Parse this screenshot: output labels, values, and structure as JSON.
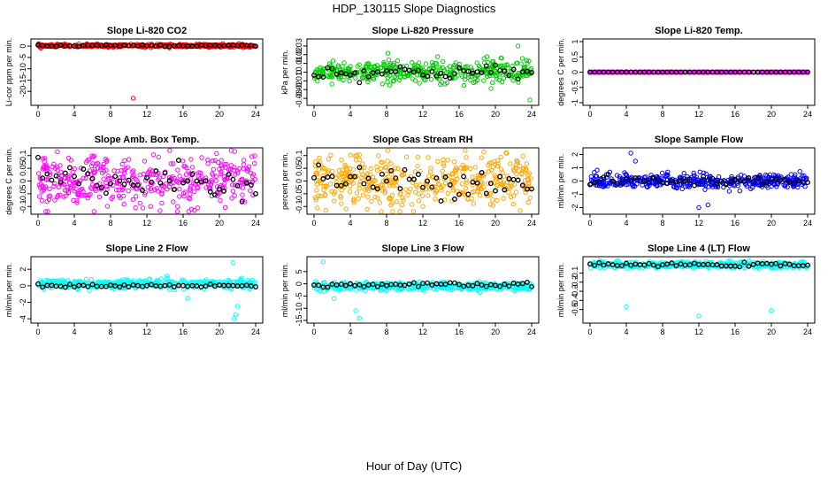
{
  "figure": {
    "title": "HDP_130115  Slope Diagnostics",
    "xlabel": "Hour of Day (UTC)"
  },
  "chart_data": [
    {
      "type": "scatter",
      "title": "Slope Li-820 CO2",
      "ylabel": "Li-cor ppm per min.",
      "xlim": [
        0,
        24
      ],
      "ylim": [
        -25,
        2
      ],
      "xticks": [
        0,
        4,
        8,
        12,
        16,
        20,
        24
      ],
      "yticks": [
        -20,
        -15,
        -10,
        -5,
        0
      ],
      "color": "#ff0000",
      "scatter_center": 0.2,
      "scatter_spread": 0.6,
      "hourly_center": 0.2,
      "hourly_spread": 0.3,
      "outliers": [
        [
          10.5,
          -23
        ]
      ]
    },
    {
      "type": "scatter",
      "title": "Slope Li-820 Pressure",
      "ylabel": "kPa per min.",
      "xlim": [
        0,
        24
      ],
      "ylim": [
        -0.035,
        0.035
      ],
      "xticks": [
        0,
        4,
        8,
        12,
        16,
        20,
        24
      ],
      "yticks": [
        -0.03,
        -0.02,
        -0.01,
        0.0,
        0.01,
        0.02,
        0.03
      ],
      "color": "#00cc00",
      "scatter_center": 0.0,
      "scatter_spread": 0.012,
      "hourly_center": 0.0,
      "hourly_spread": 0.007,
      "outliers": [
        [
          23.8,
          -0.032
        ],
        [
          22.5,
          0.03
        ]
      ]
    },
    {
      "type": "scatter",
      "title": "Slope Li-820 Temp.",
      "ylabel": "degrees C per min.",
      "xlim": [
        0,
        24
      ],
      "ylim": [
        -1,
        1
      ],
      "xticks": [
        0,
        4,
        8,
        12,
        16,
        20,
        24
      ],
      "yticks": [
        -1.0,
        -0.5,
        0.0,
        0.5,
        1.0
      ],
      "color": "#ff00ff",
      "scatter_center": 0.0,
      "scatter_spread": 0.0,
      "hourly_center": 0.0,
      "hourly_spread": 0.0,
      "outliers": []
    },
    {
      "type": "scatter",
      "title": "Slope Amb. Box Temp.",
      "ylabel": "degrees C per min.",
      "xlim": [
        0,
        24
      ],
      "ylim": [
        -0.12,
        0.12
      ],
      "xticks": [
        0,
        4,
        8,
        12,
        16,
        20,
        24
      ],
      "yticks": [
        -0.1,
        -0.05,
        0.0,
        0.05,
        0.1
      ],
      "color": "#ff00ff",
      "scatter_center": 0.0,
      "scatter_spread": 0.09,
      "hourly_center": 0.0,
      "hourly_spread": 0.06,
      "outliers": []
    },
    {
      "type": "scatter",
      "title": "Slope Gas Stream RH",
      "ylabel": "percent per min.",
      "xlim": [
        0,
        24
      ],
      "ylim": [
        -0.12,
        0.12
      ],
      "xticks": [
        0,
        4,
        8,
        12,
        16,
        20,
        24
      ],
      "yticks": [
        -0.1,
        -0.05,
        0.0,
        0.05,
        0.1
      ],
      "color": "#ffa500",
      "scatter_center": 0.0,
      "scatter_spread": 0.09,
      "hourly_center": 0.0,
      "hourly_spread": 0.05,
      "outliers": []
    },
    {
      "type": "scatter",
      "title": "Slope Sample Flow",
      "ylabel": "ml/min per min.",
      "xlim": [
        0,
        24
      ],
      "ylim": [
        -2.3,
        2.3
      ],
      "xticks": [
        0,
        4,
        8,
        12,
        16,
        20,
        24
      ],
      "yticks": [
        -2,
        -1,
        0,
        1,
        2
      ],
      "color": "#0000ff",
      "scatter_center": 0.0,
      "scatter_spread": 0.5,
      "hourly_center": 0.0,
      "hourly_spread": 0.3,
      "outliers": [
        [
          4.5,
          2.1
        ],
        [
          5,
          1.5
        ],
        [
          12,
          -2.0
        ],
        [
          13,
          -1.8
        ]
      ]
    },
    {
      "type": "scatter",
      "title": "Slope Line 2 Flow",
      "ylabel": "ml/min per min.",
      "xlim": [
        0,
        24
      ],
      "ylim": [
        -4.2,
        3.2
      ],
      "xticks": [
        0,
        4,
        8,
        12,
        16,
        20,
        24
      ],
      "yticks": [
        -4,
        -2,
        0,
        2
      ],
      "color": "#00ffff",
      "scatter_center": 0.2,
      "scatter_spread": 0.5,
      "hourly_center": 0.0,
      "hourly_spread": 0.15,
      "outliers": [
        [
          21.5,
          2.8
        ],
        [
          21.8,
          -3.5
        ],
        [
          22,
          -2.5
        ],
        [
          21.6,
          -4.0
        ],
        [
          16.5,
          -1.5
        ]
      ]
    },
    {
      "type": "scatter",
      "title": "Slope Line 3 Flow",
      "ylabel": "ml/min per min.",
      "xlim": [
        0,
        24
      ],
      "ylim": [
        -15,
        10
      ],
      "xticks": [
        0,
        4,
        8,
        12,
        16,
        20,
        24
      ],
      "yticks": [
        -15,
        -10,
        -5,
        0,
        5
      ],
      "color": "#00ffff",
      "scatter_center": -1.0,
      "scatter_spread": 1.5,
      "hourly_center": -0.5,
      "hourly_spread": 0.8,
      "outliers": [
        [
          1,
          9
        ],
        [
          4.6,
          -11
        ],
        [
          5,
          -14
        ],
        [
          2.2,
          -6
        ]
      ]
    },
    {
      "type": "scatter",
      "title": "Slope Line 4 (LT) Flow",
      "ylabel": "ml/min per min.",
      "xlim": [
        0,
        24
      ],
      "ylim": [
        -0.62,
        0.05
      ],
      "xticks": [
        0,
        4,
        8,
        12,
        16,
        20,
        24
      ],
      "yticks": [
        -0.5,
        -0.4,
        -0.3,
        -0.2,
        -0.1
      ],
      "color": "#00ffff",
      "scatter_center": -0.01,
      "scatter_spread": 0.03,
      "hourly_center": -0.01,
      "hourly_spread": 0.015,
      "outliers": [
        [
          4,
          -0.47
        ],
        [
          12,
          -0.57
        ],
        [
          20,
          -0.51
        ]
      ]
    }
  ]
}
